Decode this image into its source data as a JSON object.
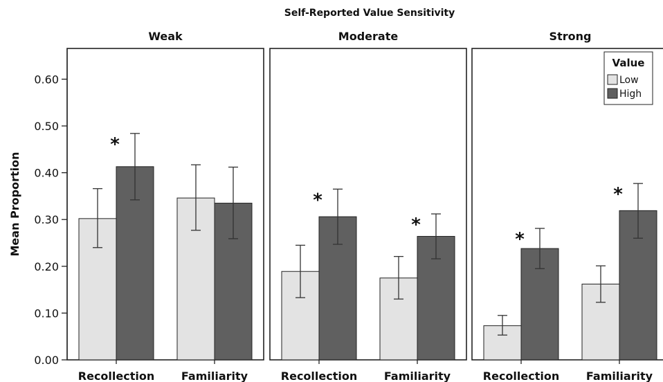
{
  "chart_data": {
    "type": "bar",
    "title": "Self-Reported Value Sensitivity",
    "ylabel": "Mean Proportion",
    "ylim": [
      0,
      0.66
    ],
    "yticks": [
      "0.00",
      "0.10",
      "0.20",
      "0.30",
      "0.40",
      "0.50",
      "0.60"
    ],
    "ytick_values": [
      0,
      0.1,
      0.2,
      0.3,
      0.4,
      0.5,
      0.6
    ],
    "grid": false,
    "legend": {
      "title": "Value",
      "position": "top-right",
      "entries": [
        {
          "name": "Low",
          "color": "#e3e3e3"
        },
        {
          "name": "High",
          "color": "#606060"
        }
      ]
    },
    "categories": [
      "Recollection",
      "Familiarity"
    ],
    "panels": [
      {
        "title": "Weak",
        "series": [
          {
            "name": "Low",
            "values": [
              0.302,
              0.346
            ],
            "err_low": [
              0.24,
              0.277
            ],
            "err_high": [
              0.366,
              0.417
            ]
          },
          {
            "name": "High",
            "values": [
              0.413,
              0.335
            ],
            "err_low": [
              0.342,
              0.259
            ],
            "err_high": [
              0.484,
              0.412
            ]
          }
        ],
        "annotations": [
          {
            "category": "Recollection",
            "series": "High",
            "text": "*"
          }
        ]
      },
      {
        "title": "Moderate",
        "series": [
          {
            "name": "Low",
            "values": [
              0.189,
              0.175
            ],
            "err_low": [
              0.133,
              0.13
            ],
            "err_high": [
              0.245,
              0.221
            ]
          },
          {
            "name": "High",
            "values": [
              0.306,
              0.264
            ],
            "err_low": [
              0.247,
              0.216
            ],
            "err_high": [
              0.365,
              0.312
            ]
          }
        ],
        "annotations": [
          {
            "category": "Recollection",
            "series": "High",
            "text": "*"
          },
          {
            "category": "Familiarity",
            "series": "High",
            "text": "*"
          }
        ]
      },
      {
        "title": "Strong",
        "series": [
          {
            "name": "Low",
            "values": [
              0.073,
              0.162
            ],
            "err_low": [
              0.053,
              0.123
            ],
            "err_high": [
              0.095,
              0.201
            ]
          },
          {
            "name": "High",
            "values": [
              0.238,
              0.319
            ],
            "err_low": [
              0.195,
              0.26
            ],
            "err_high": [
              0.281,
              0.377
            ]
          }
        ],
        "annotations": [
          {
            "category": "Recollection",
            "series": "High",
            "text": "*"
          },
          {
            "category": "Familiarity",
            "series": "High",
            "text": "*"
          }
        ]
      }
    ]
  }
}
